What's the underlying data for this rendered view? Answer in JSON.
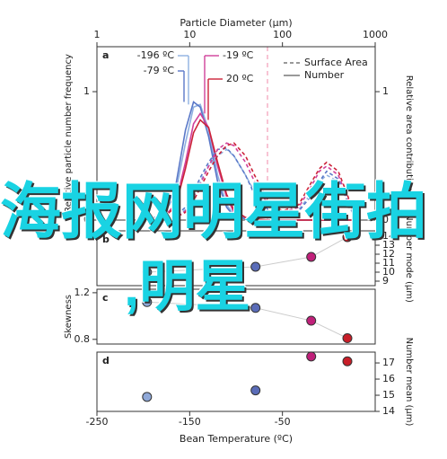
{
  "chart_data": [
    {
      "type": "line",
      "panel": "a",
      "xlabel": "Particle Diameter (μm)",
      "ylabel": "Relative particle number frequency",
      "y2label": "Relative area contribution",
      "xlog": true,
      "xlim": [
        1,
        1000
      ],
      "xticks": [
        1,
        10,
        100,
        1000
      ],
      "ylim": [
        0,
        1.35
      ],
      "yticks": [
        0,
        1
      ],
      "y2lim": [
        0,
        1.35
      ],
      "y2ticks": [
        0,
        1
      ],
      "x": [
        3,
        5,
        7,
        9,
        11,
        13,
        16,
        20,
        25,
        30,
        40,
        50,
        70,
        100,
        150,
        200,
        250,
        300,
        400,
        500,
        600
      ],
      "legend": [
        {
          "label": "Surface Area",
          "dash": true
        },
        {
          "label": "Number",
          "dash": false
        }
      ],
      "series": [
        {
          "name": "-196 ºC",
          "color": "#8fb0e0",
          "dash": false,
          "values": [
            0,
            0.02,
            0.2,
            0.6,
            0.88,
            0.9,
            0.7,
            0.35,
            0.12,
            0.04,
            0.01,
            0,
            0,
            0,
            0,
            0,
            0,
            0,
            0,
            0,
            0
          ]
        },
        {
          "name": "-79 ºC",
          "color": "#5a78c8",
          "dash": false,
          "values": [
            0,
            0.03,
            0.25,
            0.7,
            0.92,
            0.88,
            0.65,
            0.3,
            0.1,
            0.03,
            0.01,
            0,
            0,
            0,
            0,
            0,
            0,
            0,
            0,
            0,
            0
          ]
        },
        {
          "name": "-19 ºC",
          "color": "#d0409a",
          "dash": false,
          "values": [
            0,
            0.01,
            0.12,
            0.45,
            0.75,
            0.83,
            0.72,
            0.42,
            0.18,
            0.06,
            0.02,
            0,
            0,
            0,
            0,
            0,
            0,
            0,
            0,
            0,
            0
          ]
        },
        {
          "name": "20 ºC",
          "color": "#cc2238",
          "dash": false,
          "values": [
            0,
            0.01,
            0.1,
            0.4,
            0.68,
            0.78,
            0.72,
            0.45,
            0.2,
            0.08,
            0.02,
            0.01,
            0,
            0,
            0,
            0,
            0,
            0,
            0,
            0,
            0
          ]
        },
        {
          "color": "#8fb0e0",
          "dash": true,
          "values": [
            0,
            0,
            0.02,
            0.08,
            0.2,
            0.3,
            0.42,
            0.5,
            0.55,
            0.5,
            0.35,
            0.22,
            0.1,
            0.05,
            0.08,
            0.2,
            0.3,
            0.35,
            0.3,
            0.15,
            0.02
          ]
        },
        {
          "color": "#5a78c8",
          "dash": true,
          "values": [
            0,
            0,
            0.03,
            0.1,
            0.22,
            0.33,
            0.45,
            0.55,
            0.56,
            0.5,
            0.35,
            0.2,
            0.08,
            0.04,
            0.07,
            0.18,
            0.3,
            0.38,
            0.32,
            0.15,
            0.02
          ]
        },
        {
          "color": "#d0409a",
          "dash": true,
          "values": [
            0,
            0,
            0.02,
            0.07,
            0.18,
            0.28,
            0.42,
            0.55,
            0.6,
            0.58,
            0.45,
            0.3,
            0.12,
            0.06,
            0.1,
            0.25,
            0.38,
            0.42,
            0.35,
            0.18,
            0.03
          ]
        },
        {
          "color": "#cc2238",
          "dash": true,
          "values": [
            0,
            0,
            0.02,
            0.06,
            0.15,
            0.25,
            0.38,
            0.5,
            0.58,
            0.6,
            0.5,
            0.35,
            0.15,
            0.07,
            0.12,
            0.28,
            0.4,
            0.45,
            0.38,
            0.2,
            0.03
          ]
        }
      ]
    },
    {
      "type": "scatter",
      "panel": "b",
      "y2label": "Number mode (μm)",
      "xlim": [
        -250,
        50
      ],
      "y2lim": [
        8.5,
        14.6
      ],
      "y2ticks": [
        9,
        10,
        11,
        12,
        13,
        14
      ],
      "x": [
        -196,
        -79,
        -19,
        20
      ],
      "values": [
        10,
        10.6,
        11.7,
        13.9
      ],
      "colors": [
        "#8fa8d8",
        "#5a6cb8",
        "#c0207a",
        "#c81e28"
      ],
      "line": true
    },
    {
      "type": "scatter",
      "panel": "c",
      "ylabel": "Skewness",
      "xlim": [
        -250,
        50
      ],
      "ylim": [
        0.76,
        1.23
      ],
      "yticks": [
        0.8,
        1.2
      ],
      "x": [
        -196,
        -79,
        -19,
        20
      ],
      "values": [
        1.12,
        1.07,
        0.96,
        0.81
      ],
      "colors": [
        "#8fa8d8",
        "#5a6cb8",
        "#c0207a",
        "#c81e28"
      ],
      "line": true
    },
    {
      "type": "scatter",
      "panel": "d",
      "y2label": "Number mean (μm)",
      "xlabel": "Bean Temperature (ºC)",
      "xlim": [
        -250,
        50
      ],
      "xticks": [
        -250,
        -150,
        -50
      ],
      "y2lim": [
        14,
        17.67
      ],
      "y2ticks": [
        14,
        15,
        16,
        17
      ],
      "x": [
        -196,
        -79,
        -19,
        20
      ],
      "values": [
        14.9,
        15.3,
        17.4,
        17.1
      ],
      "colors": [
        "#8fa8d8",
        "#5a6cb8",
        "#c0207a",
        "#c81e28"
      ],
      "line": false
    }
  ],
  "watermark": {
    "line1": "海报网明星街拍",
    "line2": ",明星"
  }
}
